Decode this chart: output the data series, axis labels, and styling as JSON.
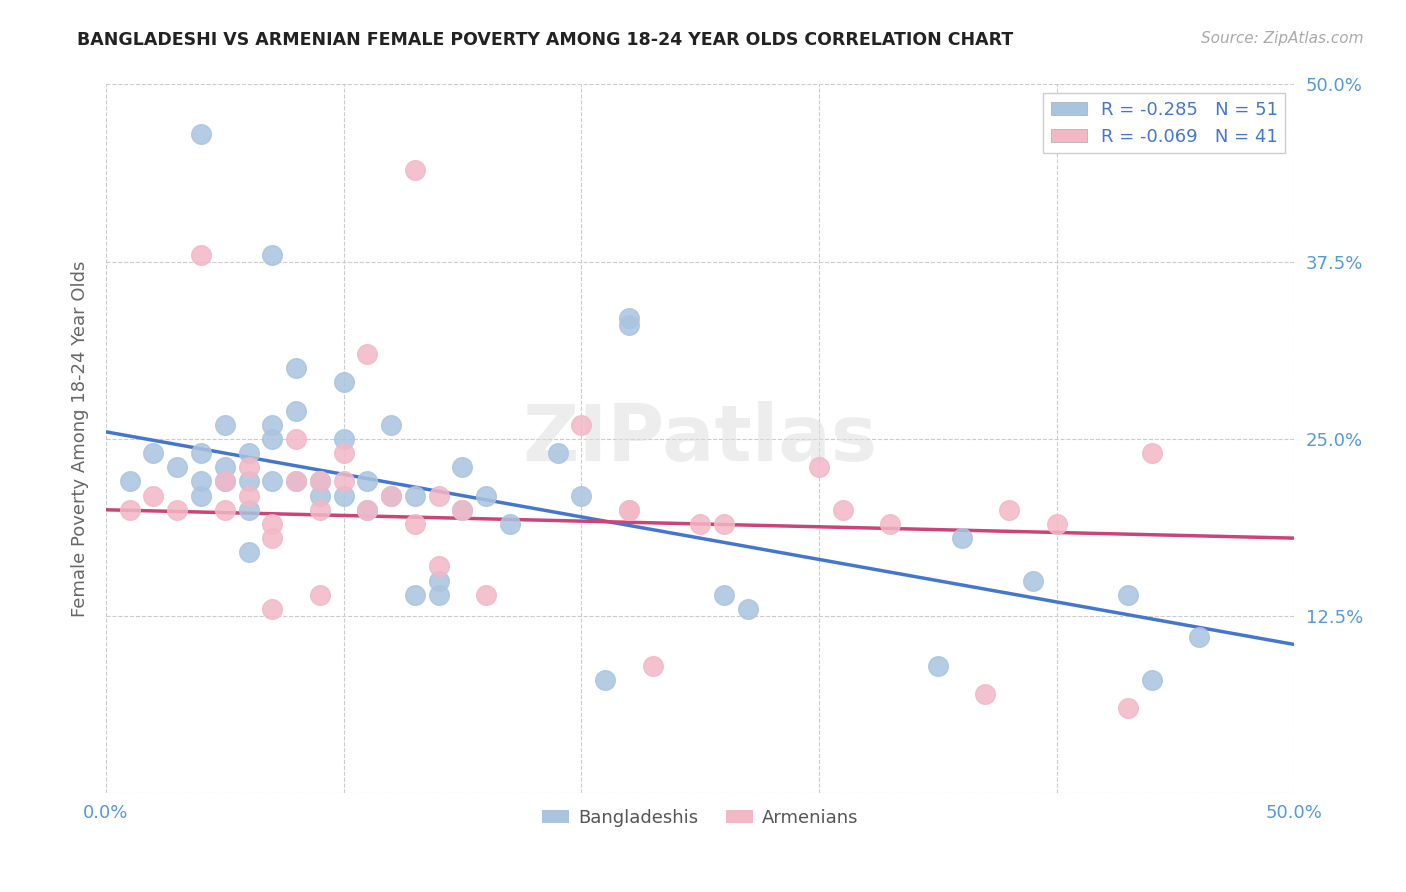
{
  "title": "BANGLADESHI VS ARMENIAN FEMALE POVERTY AMONG 18-24 YEAR OLDS CORRELATION CHART",
  "source": "Source: ZipAtlas.com",
  "ylabel": "Female Poverty Among 18-24 Year Olds",
  "xlim": [
    0,
    0.5
  ],
  "ylim": [
    0,
    0.5
  ],
  "bangladeshi_color": "#aac4e0",
  "armenian_color": "#f2b8c6",
  "trend_bangladeshi_color": "#4477cc",
  "trend_armenian_color": "#cc4477",
  "R_bangladeshi": -0.285,
  "N_bangladeshi": 51,
  "R_armenian": -0.069,
  "N_armenian": 41,
  "watermark": "ZIPatlas",
  "background_color": "#ffffff",
  "grid_color": "#cccccc",
  "trend_bd_x0": 0.0,
  "trend_bd_y0": 0.255,
  "trend_bd_x1": 0.5,
  "trend_bd_y1": 0.105,
  "trend_ar_x0": 0.0,
  "trend_ar_y0": 0.2,
  "trend_ar_x1": 0.5,
  "trend_ar_y1": 0.18,
  "bangladeshi_x": [
    0.01,
    0.02,
    0.03,
    0.04,
    0.04,
    0.04,
    0.05,
    0.05,
    0.05,
    0.06,
    0.06,
    0.06,
    0.06,
    0.07,
    0.07,
    0.07,
    0.07,
    0.08,
    0.08,
    0.08,
    0.09,
    0.09,
    0.1,
    0.1,
    0.1,
    0.11,
    0.11,
    0.12,
    0.12,
    0.13,
    0.13,
    0.14,
    0.14,
    0.15,
    0.15,
    0.16,
    0.17,
    0.19,
    0.2,
    0.21,
    0.22,
    0.26,
    0.27,
    0.35,
    0.36,
    0.39,
    0.43,
    0.44,
    0.46,
    0.04,
    0.22
  ],
  "bangladeshi_y": [
    0.22,
    0.24,
    0.23,
    0.22,
    0.21,
    0.24,
    0.26,
    0.23,
    0.22,
    0.24,
    0.22,
    0.2,
    0.17,
    0.38,
    0.26,
    0.25,
    0.22,
    0.3,
    0.27,
    0.22,
    0.22,
    0.21,
    0.29,
    0.25,
    0.21,
    0.22,
    0.2,
    0.26,
    0.21,
    0.21,
    0.14,
    0.15,
    0.14,
    0.23,
    0.2,
    0.21,
    0.19,
    0.24,
    0.21,
    0.08,
    0.33,
    0.14,
    0.13,
    0.09,
    0.18,
    0.15,
    0.14,
    0.08,
    0.11,
    0.465,
    0.335
  ],
  "armenian_x": [
    0.01,
    0.02,
    0.03,
    0.04,
    0.05,
    0.05,
    0.06,
    0.06,
    0.07,
    0.07,
    0.07,
    0.08,
    0.08,
    0.09,
    0.09,
    0.09,
    0.1,
    0.1,
    0.11,
    0.11,
    0.12,
    0.13,
    0.14,
    0.14,
    0.15,
    0.16,
    0.2,
    0.22,
    0.22,
    0.23,
    0.25,
    0.26,
    0.3,
    0.31,
    0.33,
    0.37,
    0.38,
    0.4,
    0.43,
    0.44,
    0.13
  ],
  "armenian_y": [
    0.2,
    0.21,
    0.2,
    0.38,
    0.22,
    0.2,
    0.23,
    0.21,
    0.19,
    0.18,
    0.13,
    0.25,
    0.22,
    0.22,
    0.2,
    0.14,
    0.24,
    0.22,
    0.31,
    0.2,
    0.21,
    0.19,
    0.21,
    0.16,
    0.2,
    0.14,
    0.26,
    0.2,
    0.2,
    0.09,
    0.19,
    0.19,
    0.23,
    0.2,
    0.19,
    0.07,
    0.2,
    0.19,
    0.06,
    0.24,
    0.44
  ]
}
